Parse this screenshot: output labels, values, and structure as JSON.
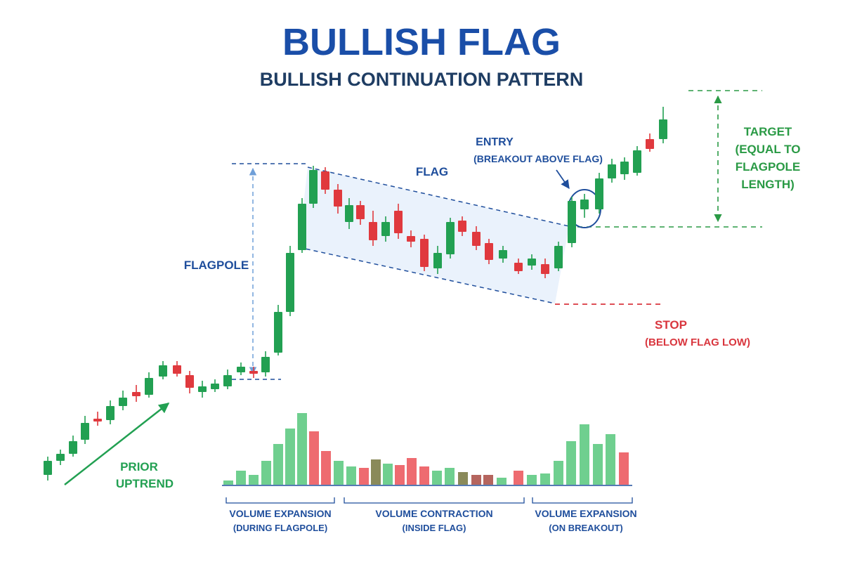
{
  "title": "BULLISH FLAG",
  "subtitle": "BULLISH CONTINUATION PATTERN",
  "labels": {
    "flag": "FLAG",
    "flagpole": "FLAGPOLE",
    "prior_uptrend_1": "PRIOR",
    "prior_uptrend_2": "UPTREND",
    "entry_1": "ENTRY",
    "entry_2": "(BREAKOUT ABOVE FLAG)",
    "target_1": "TARGET",
    "target_2": "(EQUAL TO",
    "target_3": "FLAGPOLE",
    "target_4": "LENGTH)",
    "stop_1": "STOP",
    "stop_2": "(BELOW FLAG LOW)",
    "vol_exp_flagpole_1": "VOLUME EXPANSION",
    "vol_exp_flagpole_2": "(DURING FLAGPOLE)",
    "vol_contraction_1": "VOLUME CONTRACTION",
    "vol_contraction_2": "(INSIDE FLAG)",
    "vol_exp_breakout_1": "VOLUME EXPANSION",
    "vol_exp_breakout_2": "(ON BREAKOUT)"
  },
  "colors": {
    "title": "#1a4ea8",
    "subtitle": "#1f3d63",
    "navy": "#1f4e9c",
    "bull": "#22a052",
    "bear": "#e0393e",
    "target": "#2a9a45",
    "stop": "#d9363e",
    "flag_fill": "#e6f0fb",
    "vol_bull": "#6fcf8f",
    "vol_bear": "#ee6b70",
    "vol_dark": "#8a8a5a",
    "vol_brown": "#b5655e"
  }
}
